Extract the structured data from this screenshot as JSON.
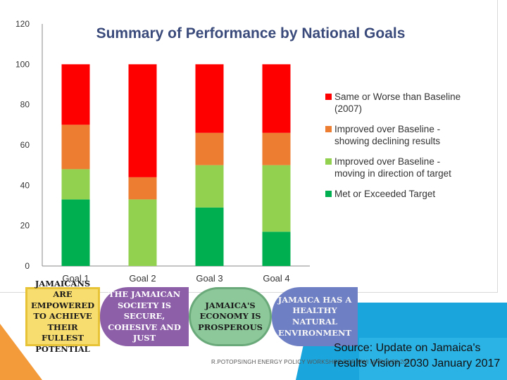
{
  "chart_data": {
    "type": "bar",
    "stacked": true,
    "title": "Summary of Performance by National Goals",
    "categories": [
      "Goal 1",
      "Goal 2",
      "Goal 3",
      "Goal 4"
    ],
    "series": [
      {
        "name": "Met or Exceeded Target",
        "color": "#00b050",
        "values": [
          33,
          0,
          29,
          17
        ]
      },
      {
        "name": "Improved over Baseline - moving in direction of target",
        "color": "#92d050",
        "values": [
          15,
          33,
          21,
          33
        ]
      },
      {
        "name": "Improved over Baseline - showing declining results",
        "color": "#ed7d31",
        "values": [
          22,
          11,
          16,
          16
        ]
      },
      {
        "name": "Same or Worse than Baseline (2007)",
        "color": "#ff0000",
        "values": [
          30,
          56,
          34,
          34
        ]
      }
    ],
    "ylim": [
      0,
      120
    ],
    "yticks": [
      "0",
      "20",
      "40",
      "60",
      "80",
      "100",
      "120"
    ],
    "legend_position": "right",
    "legend_order": [
      3,
      2,
      1,
      0
    ],
    "grid": false
  },
  "banner": {
    "tile1": "Jamaicans are empowered to achieve their fullest potential",
    "tile2": "The Jamaican society is secure, cohesive and just",
    "tile3": "Jamaica's Economy is Prosperous",
    "tile4": "Jamaica has a healthy natural environment"
  },
  "footer": {
    "note": "R.POTOPSINGH ENERGY POLICY WORKSHOP FOR UWI MARCH23,2017",
    "source": "Source: Update on Jamaica's results Vision 2030 January 2017"
  },
  "colors": {
    "accent_blue": "#1aa5dc",
    "accent_orange": "#f39a3b"
  }
}
